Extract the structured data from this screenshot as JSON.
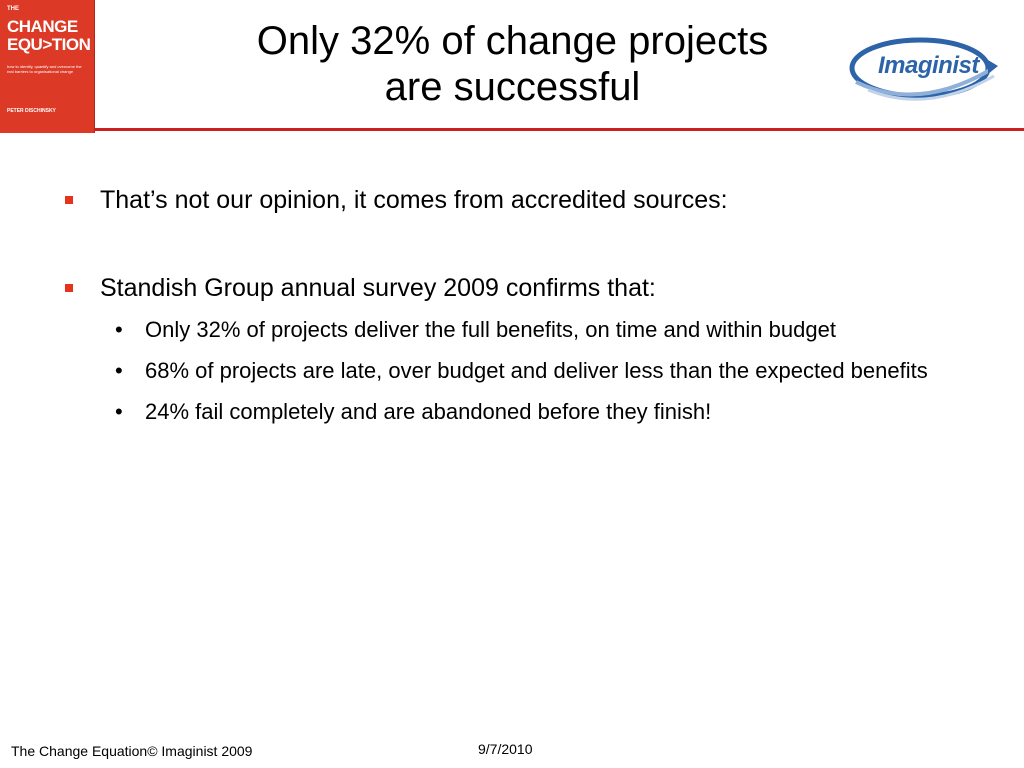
{
  "cover": {
    "the": "THE",
    "title_line1": "CHANGE",
    "title_line2": "EQU>TION",
    "subtitle": "how to identify, quantify and overcome the real barriers to organisational change",
    "author": "PETER DISCHINSKY"
  },
  "slide": {
    "title_line1": "Only 32% of change projects",
    "title_line2": "are successful"
  },
  "logo": {
    "text": "Imaginist"
  },
  "colors": {
    "accent_red": "#cc1f1f",
    "bullet_red": "#e8331c",
    "logo_blue": "#2d63a8"
  },
  "bullets": [
    {
      "text": "That’s not our opinion, it comes from accredited sources:"
    },
    {
      "text": "Standish Group annual survey 2009 confirms that:",
      "sub": [
        "Only 32% of projects deliver the full benefits, on time and within budget",
        "68% of projects are late, over budget and deliver less than the expected benefits",
        "24% fail completely and are abandoned before they finish!"
      ]
    }
  ],
  "footer": {
    "left": "The Change Equation© Imaginist 2009",
    "date": "9/7/2010"
  }
}
